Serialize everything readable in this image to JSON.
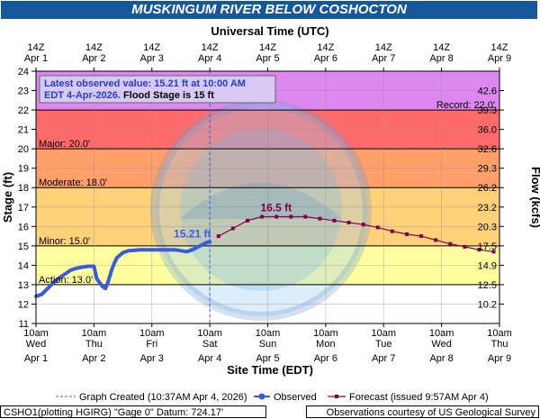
{
  "title": "MUSKINGUM RIVER BELOW COSHOCTON",
  "top_axis_title": "Universal Time (UTC)",
  "bottom_axis_title": "Site Time (EDT)",
  "left_axis_title": "Stage (ft)",
  "right_axis_title": "Flow (kcfs)",
  "latest_box": {
    "line1": "Latest observed value: 15.21 ft at 10:00 AM",
    "line2_a": "EDT 4-Apr-2026.",
    "line2_b": " Flood Stage is 15 ft"
  },
  "colors": {
    "record": "#dd88ee",
    "major": "#ff6b6b",
    "moderate": "#ff9f6a",
    "minor": "#ffd27a",
    "action": "#ffff9f",
    "normal": "#ffffff",
    "observed": "#3a5be0",
    "forecast": "#800050",
    "title_bg": "#16569b"
  },
  "chart_data": {
    "type": "line",
    "x_unit": "days since Apr 1 10am EDT",
    "xlim": [
      0,
      8
    ],
    "ylim": [
      11,
      24
    ],
    "yticks": [
      11,
      12,
      13,
      14,
      15,
      16,
      17,
      18,
      19,
      20,
      21,
      22,
      23,
      24
    ],
    "y_right_ticks": [
      {
        "stage": 12,
        "label": "10.2"
      },
      {
        "stage": 13,
        "label": "12.5"
      },
      {
        "stage": 14,
        "label": "14.9"
      },
      {
        "stage": 15,
        "label": "17.5"
      },
      {
        "stage": 16,
        "label": "20.3"
      },
      {
        "stage": 17,
        "label": "23.2"
      },
      {
        "stage": 18,
        "label": "26.2"
      },
      {
        "stage": 19,
        "label": "29.3"
      },
      {
        "stage": 20,
        "label": "32.6"
      },
      {
        "stage": 21,
        "label": "36.0"
      },
      {
        "stage": 22,
        "label": "39.3"
      },
      {
        "stage": 23,
        "label": "42.6"
      }
    ],
    "top_ticks": [
      {
        "line1": "14Z",
        "line2": "Apr 1"
      },
      {
        "line1": "14Z",
        "line2": "Apr 2"
      },
      {
        "line1": "14Z",
        "line2": "Apr 3"
      },
      {
        "line1": "14Z",
        "line2": "Apr 4"
      },
      {
        "line1": "14Z",
        "line2": "Apr 5"
      },
      {
        "line1": "14Z",
        "line2": "Apr 6"
      },
      {
        "line1": "14Z",
        "line2": "Apr 7"
      },
      {
        "line1": "14Z",
        "line2": "Apr 8"
      },
      {
        "line1": "14Z",
        "line2": "Apr 9"
      }
    ],
    "bottom_ticks": [
      {
        "line1": "10am",
        "line2": "Wed",
        "line3": "Apr 1"
      },
      {
        "line1": "10am",
        "line2": "Thu",
        "line3": "Apr 2"
      },
      {
        "line1": "10am",
        "line2": "Fri",
        "line3": "Apr 3"
      },
      {
        "line1": "10am",
        "line2": "Sat",
        "line3": "Apr 4"
      },
      {
        "line1": "10am",
        "line2": "Sun",
        "line3": "Apr 5"
      },
      {
        "line1": "10am",
        "line2": "Mon",
        "line3": "Apr 6"
      },
      {
        "line1": "10am",
        "line2": "Tue",
        "line3": "Apr 7"
      },
      {
        "line1": "10am",
        "line2": "Wed",
        "line3": "Apr 8"
      },
      {
        "line1": "10am",
        "line2": "Thu",
        "line3": "Apr 9"
      }
    ],
    "bands": [
      {
        "name": "record",
        "from": 22,
        "to": 24,
        "label": "Record: 22.0'"
      },
      {
        "name": "major",
        "from": 20,
        "to": 22,
        "label": "Major: 20.0'"
      },
      {
        "name": "moderate",
        "from": 18,
        "to": 20,
        "label": "Moderate: 18.0'"
      },
      {
        "name": "minor",
        "from": 15,
        "to": 18,
        "label": "Minor: 15.0'"
      },
      {
        "name": "action",
        "from": 13,
        "to": 15,
        "label": "Action: 13.0'"
      },
      {
        "name": "normal",
        "from": 11,
        "to": 13,
        "label": ""
      }
    ],
    "series": [
      {
        "name": "Observed",
        "x": [
          0,
          0.1,
          0.2,
          0.3,
          0.4,
          0.5,
          0.6,
          0.7,
          0.8,
          0.9,
          1.0,
          1.05,
          1.15,
          1.2,
          1.25,
          1.3,
          1.35,
          1.4,
          1.5,
          1.6,
          1.8,
          2.0,
          2.2,
          2.4,
          2.6,
          2.7,
          2.8,
          2.9,
          2.95,
          3.0
        ],
        "y": [
          12.4,
          12.5,
          12.8,
          13.1,
          13.35,
          13.55,
          13.75,
          13.85,
          13.9,
          13.95,
          13.95,
          13.3,
          12.9,
          12.8,
          13.2,
          13.7,
          14.1,
          14.4,
          14.65,
          14.75,
          14.8,
          14.8,
          14.8,
          14.8,
          14.7,
          14.8,
          14.95,
          15.1,
          15.18,
          15.21
        ]
      },
      {
        "name": "Forecast (issued 9:57AM Apr 4)",
        "x": [
          3.15,
          3.4,
          3.65,
          3.9,
          4.15,
          4.4,
          4.65,
          4.9,
          5.15,
          5.4,
          5.65,
          5.9,
          6.15,
          6.4,
          6.65,
          6.9,
          7.15,
          7.4,
          7.65,
          7.9
        ],
        "y": [
          15.5,
          15.9,
          16.3,
          16.5,
          16.5,
          16.5,
          16.5,
          16.4,
          16.3,
          16.2,
          16.1,
          15.95,
          15.75,
          15.6,
          15.5,
          15.3,
          15.1,
          14.95,
          14.8,
          14.7
        ]
      }
    ],
    "annotations": [
      {
        "text": "15.21 ft",
        "x": 3.0,
        "y": 15.21
      },
      {
        "text": "16.5 ft",
        "x": 4.0,
        "y": 16.5
      }
    ],
    "created_x": 3.0
  },
  "legend": {
    "created": "Graph Created (10:37AM Apr 4, 2026)",
    "observed": "Observed",
    "forecast": "Forecast (issued 9:57AM Apr 4)"
  },
  "footer": {
    "left": "CSHO1(plotting HGIRG) \"Gage 0\" Datum: 724.17'",
    "right": "Observations courtesy of US Geological Survey"
  }
}
